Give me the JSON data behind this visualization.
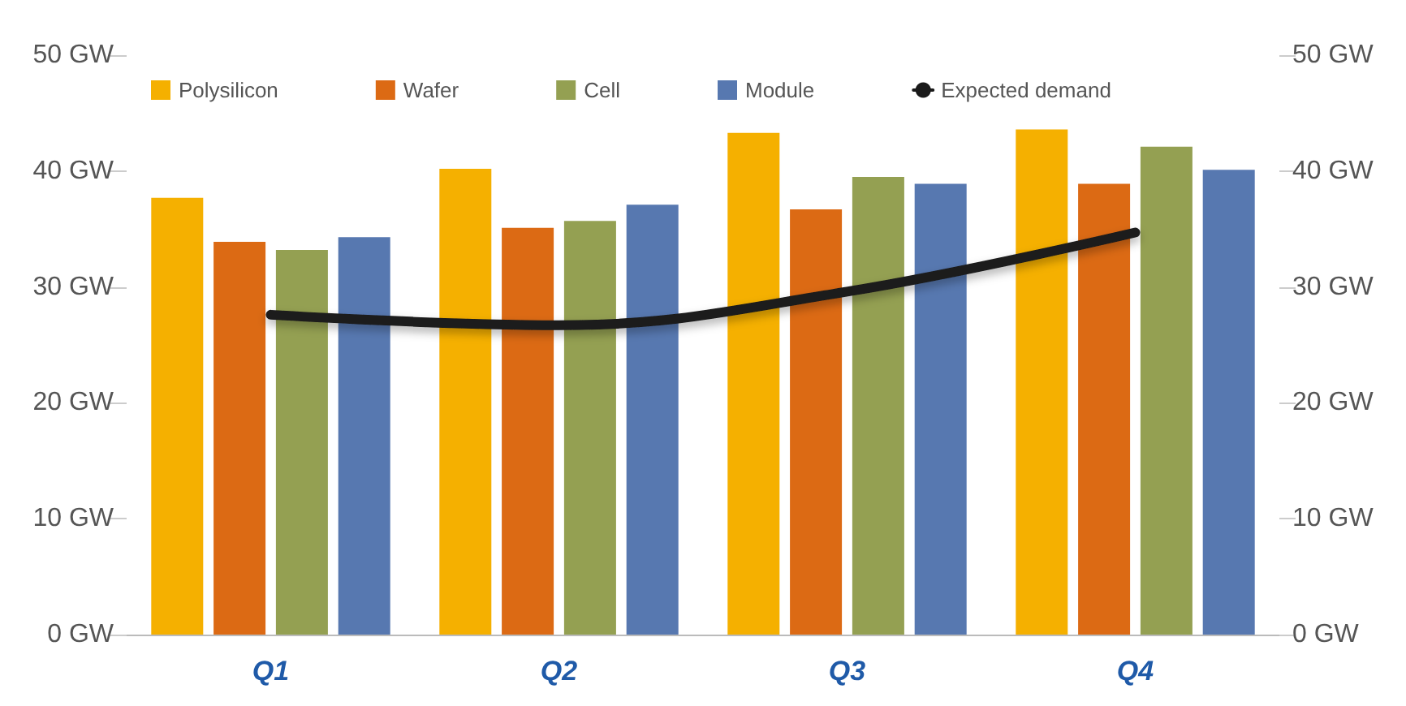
{
  "chart_data": {
    "type": "bar",
    "categories": [
      "Q1",
      "Q2",
      "Q3",
      "Q4"
    ],
    "series": [
      {
        "name": "Polysilicon",
        "color": "#f5b000",
        "values": [
          37.7,
          40.2,
          43.3,
          43.6
        ]
      },
      {
        "name": "Wafer",
        "color": "#dc6a14",
        "values": [
          33.9,
          35.1,
          36.7,
          38.9
        ]
      },
      {
        "name": "Cell",
        "color": "#94a052",
        "values": [
          33.2,
          35.7,
          39.5,
          42.1
        ]
      },
      {
        "name": "Module",
        "color": "#5778b0",
        "values": [
          34.3,
          37.1,
          38.9,
          40.1
        ]
      },
      {
        "name": "Expected demand",
        "type": "line",
        "color": "#1a1a1a",
        "values": [
          27.6,
          26.7,
          29.6,
          34.7
        ]
      }
    ],
    "ylim": [
      0,
      50
    ],
    "yticks": [
      {
        "value": 0,
        "label": "0 GW"
      },
      {
        "value": 10,
        "label": "10 GW"
      },
      {
        "value": 20,
        "label": "20 GW"
      },
      {
        "value": 30,
        "label": "30 GW"
      },
      {
        "value": 40,
        "label": "40 GW"
      },
      {
        "value": 50,
        "label": "50 GW"
      }
    ],
    "y2lim": [
      0,
      50
    ],
    "y2ticks": [
      {
        "value": 0,
        "label": "0 GW"
      },
      {
        "value": 10,
        "label": "10 GW"
      },
      {
        "value": 20,
        "label": "20 GW"
      },
      {
        "value": 30,
        "label": "30 GW"
      },
      {
        "value": 40,
        "label": "40 GW"
      },
      {
        "value": 50,
        "label": "50 GW"
      }
    ],
    "grid": false,
    "legend": "top",
    "marker": "none",
    "line_style": "solid"
  }
}
